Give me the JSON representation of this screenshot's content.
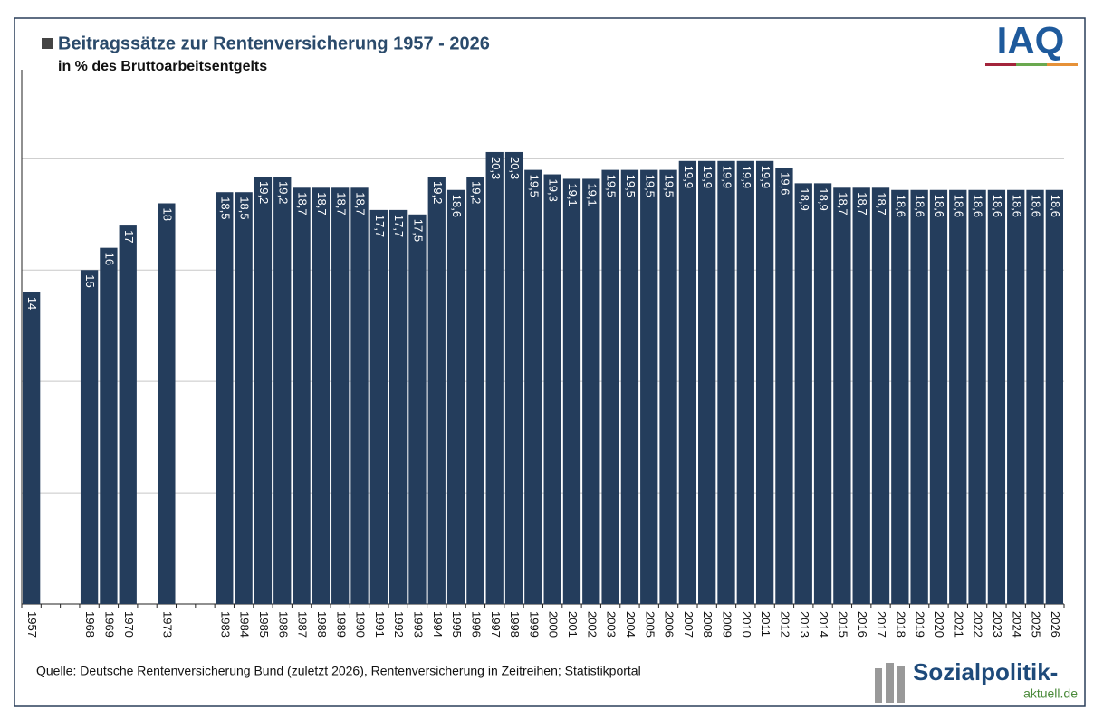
{
  "chart_data": {
    "type": "bar",
    "title": "Beitragssätze zur Rentenversicherung 1957 - 2026",
    "subtitle": "in % des Bruttoarbeitsentgelts",
    "source": "Quelle: Deutsche Rentenversicherung Bund (zuletzt 2026), Rentenversicherung in Zeitreihen; Statistikportal",
    "categories": [
      "1957",
      null,
      null,
      "1968",
      "1969",
      "1970",
      null,
      "1973",
      null,
      null,
      "1983",
      "1984",
      "1985",
      "1986",
      "1987",
      "1988",
      "1989",
      "1990",
      "1991",
      "1992",
      "1993",
      "1994",
      "1995",
      "1996",
      "1997",
      "1998",
      "1999",
      "2000",
      "2001",
      "2002",
      "2003",
      "2004",
      "2005",
      "2006",
      "2007",
      "2008",
      "2009",
      "2010",
      "2011",
      "2012",
      "2013",
      "2014",
      "2015",
      "2016",
      "2017",
      "2018",
      "2019",
      "2020",
      "2021",
      "2022",
      "2023",
      "2024",
      "2025",
      "2026"
    ],
    "values": [
      14,
      null,
      null,
      15,
      16,
      17,
      null,
      18,
      null,
      null,
      18.5,
      18.5,
      19.2,
      19.2,
      18.7,
      18.7,
      18.7,
      18.7,
      17.7,
      17.7,
      17.5,
      19.2,
      18.6,
      19.2,
      20.3,
      20.3,
      19.5,
      19.3,
      19.1,
      19.1,
      19.5,
      19.5,
      19.5,
      19.5,
      19.9,
      19.9,
      19.9,
      19.9,
      19.9,
      19.6,
      18.9,
      18.9,
      18.7,
      18.7,
      18.7,
      18.6,
      18.6,
      18.6,
      18.6,
      18.6,
      18.6,
      18.6,
      18.6,
      18.6
    ],
    "value_labels": [
      "14",
      null,
      null,
      "15",
      "16",
      "17",
      null,
      "18",
      null,
      null,
      "18,5",
      "18,5",
      "19,2",
      "19,2",
      "18,7",
      "18,7",
      "18,7",
      "18,7",
      "17,7",
      "17,7",
      "17,5",
      "19,2",
      "18,6",
      "19,2",
      "20,3",
      "20,3",
      "19,5",
      "19,3",
      "19,1",
      "19,1",
      "19,5",
      "19,5",
      "19,5",
      "19,5",
      "19,9",
      "19,9",
      "19,9",
      "19,9",
      "19,9",
      "19,6",
      "18,9",
      "18,9",
      "18,7",
      "18,7",
      "18,7",
      "18,6",
      "18,6",
      "18,6",
      "18,6",
      "18,6",
      "18,6",
      "18,6",
      "18,6",
      "18,6"
    ],
    "color": "#243d5c",
    "ylim": [
      0,
      24
    ],
    "yticks": [
      0,
      5,
      10,
      15,
      20
    ],
    "grid": true
  },
  "branding": {
    "logo": "IAQ",
    "site": "Sozialpolitik-",
    "site_domain": "aktuell.de"
  }
}
